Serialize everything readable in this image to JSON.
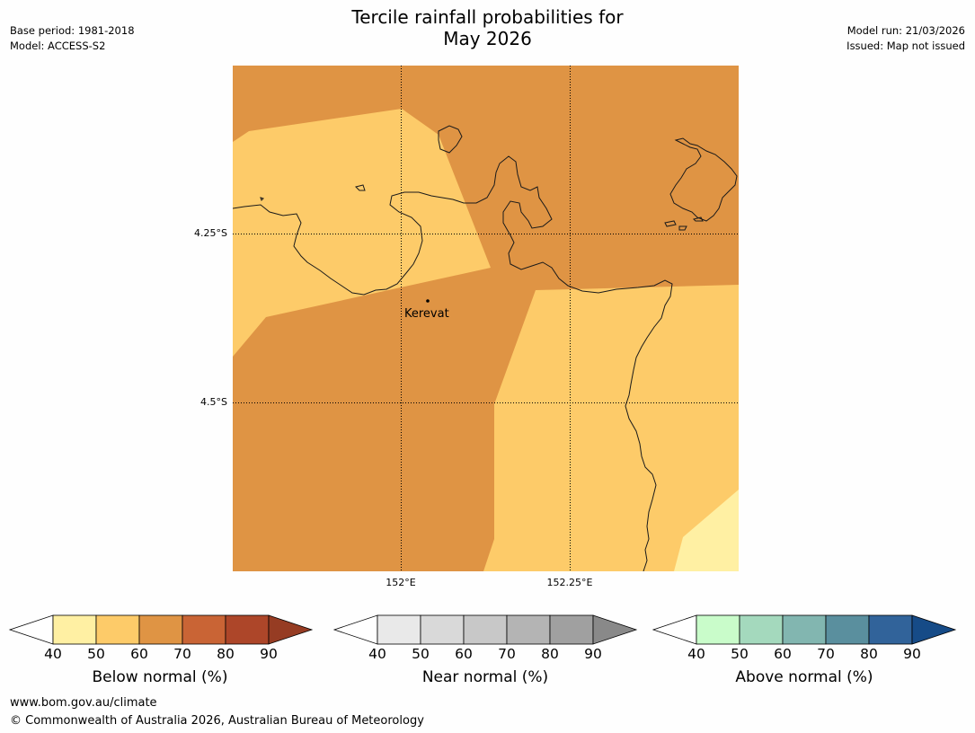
{
  "title_line1": "Tercile rainfall probabilities for",
  "title_line2": "May 2026",
  "base_period": "Base period: 1981-2018",
  "model": "Model: ACCESS-S2",
  "model_run": "Model run: 21/03/2026",
  "issued": "Issued: Map not issued",
  "map": {
    "place_label": "Kerevat",
    "lat_labels": [
      "4.25°S",
      "4.5°S"
    ],
    "lon_labels": [
      "152°E",
      "152.25°E"
    ]
  },
  "colorbars": [
    {
      "label": "Below normal (%)",
      "ticks": [
        "40",
        "50",
        "60",
        "70",
        "80",
        "90"
      ],
      "colors": [
        "#fff0a3",
        "#fdcb69",
        "#df9444",
        "#c96435",
        "#ad4629"
      ],
      "under": "#ffffff",
      "over": "#963c23"
    },
    {
      "label": "Near normal (%)",
      "ticks": [
        "40",
        "50",
        "60",
        "70",
        "80",
        "90"
      ],
      "colors": [
        "#e9e9e9",
        "#d9d9d9",
        "#c8c8c8",
        "#b4b4b4",
        "#a0a0a0"
      ],
      "under": "#ffffff",
      "over": "#898989"
    },
    {
      "label": "Above normal (%)",
      "ticks": [
        "40",
        "50",
        "60",
        "70",
        "80",
        "90"
      ],
      "colors": [
        "#c9fcca",
        "#a4d9bd",
        "#82b6b0",
        "#5a8f9e",
        "#31639a"
      ],
      "under": "#ffffff",
      "over": "#164b87"
    }
  ],
  "footer_url": "www.bom.gov.au/climate",
  "footer_copyright": "© Commonwealth of Australia 2026, Australian Bureau of Meteorology"
}
